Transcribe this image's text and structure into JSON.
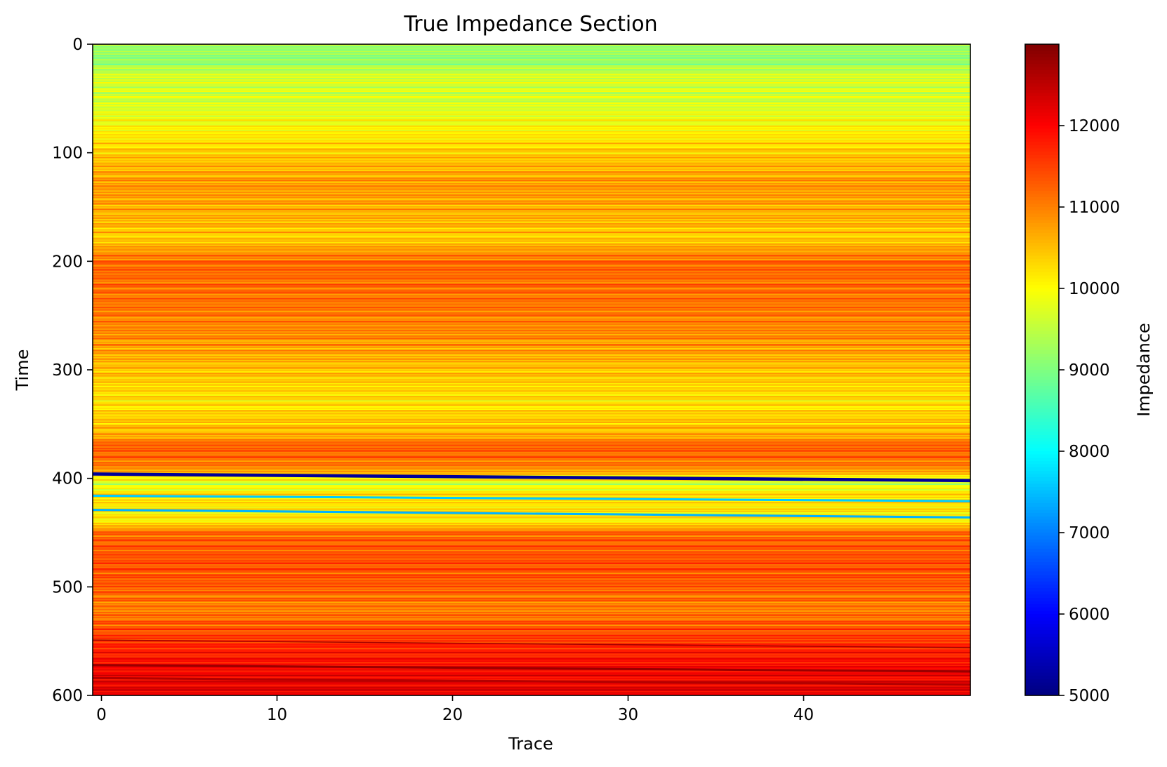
{
  "chart_data": {
    "type": "heatmap",
    "title": "True Impedance Section",
    "xlabel": "Trace",
    "ylabel": "Time",
    "colorbar_label": "Impedance",
    "colormap": "jet",
    "x_range": [
      -0.5,
      49.5
    ],
    "y_range": [
      0,
      600
    ],
    "y_inverted": true,
    "color_range": [
      5000,
      13000
    ],
    "x_ticks": [
      0,
      10,
      20,
      30,
      40
    ],
    "y_ticks": [
      0,
      100,
      200,
      300,
      400,
      500,
      600
    ],
    "colorbar_ticks": [
      5000,
      6000,
      7000,
      8000,
      9000,
      10000,
      11000,
      12000
    ],
    "n_traces": 50,
    "n_samples": 600,
    "impedance_profile": [
      {
        "time": 0,
        "value": 9300
      },
      {
        "time": 15,
        "value": 9100
      },
      {
        "time": 30,
        "value": 9700
      },
      {
        "time": 50,
        "value": 9600
      },
      {
        "time": 75,
        "value": 10000
      },
      {
        "time": 100,
        "value": 10400
      },
      {
        "time": 130,
        "value": 10800
      },
      {
        "time": 160,
        "value": 10600
      },
      {
        "time": 180,
        "value": 10400
      },
      {
        "time": 200,
        "value": 11200
      },
      {
        "time": 240,
        "value": 11100
      },
      {
        "time": 270,
        "value": 10900
      },
      {
        "time": 300,
        "value": 10500
      },
      {
        "time": 330,
        "value": 10200
      },
      {
        "time": 360,
        "value": 10600
      },
      {
        "time": 370,
        "value": 11300
      },
      {
        "time": 390,
        "value": 11000
      },
      {
        "time": 405,
        "value": 9600
      },
      {
        "time": 415,
        "value": 10300
      },
      {
        "time": 440,
        "value": 10100
      },
      {
        "time": 450,
        "value": 11200
      },
      {
        "time": 480,
        "value": 11400
      },
      {
        "time": 500,
        "value": 11300
      },
      {
        "time": 520,
        "value": 11000
      },
      {
        "time": 540,
        "value": 11400
      },
      {
        "time": 560,
        "value": 11800
      },
      {
        "time": 585,
        "value": 12100
      },
      {
        "time": 600,
        "value": 12200
      }
    ],
    "dipping_events": [
      {
        "name": "low-impedance layer",
        "time_at_first_trace": 396,
        "time_at_last_trace": 402,
        "value": 5200,
        "thickness": 3
      },
      {
        "name": "cyan band upper",
        "time_at_first_trace": 416,
        "time_at_last_trace": 421,
        "value": 7600,
        "thickness": 2
      },
      {
        "name": "cyan band lower",
        "time_at_first_trace": 429,
        "time_at_last_trace": 436,
        "value": 7400,
        "thickness": 2
      },
      {
        "name": "high-impedance streak",
        "time_at_first_trace": 549,
        "time_at_last_trace": 556,
        "value": 12700,
        "thickness": 1
      },
      {
        "name": "high-impedance streak deep",
        "time_at_first_trace": 572,
        "time_at_last_trace": 578,
        "value": 12800,
        "thickness": 2
      },
      {
        "name": "high-impedance streak base",
        "time_at_first_trace": 584,
        "time_at_last_trace": 590,
        "value": 12600,
        "thickness": 2
      }
    ]
  }
}
